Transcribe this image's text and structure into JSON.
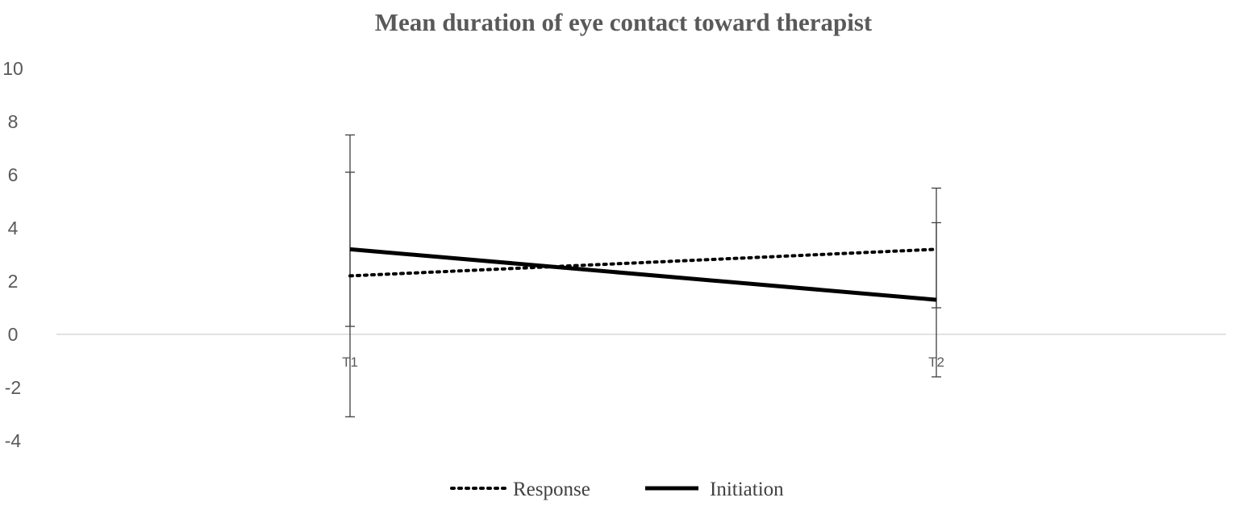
{
  "chart_data": {
    "type": "line",
    "title": "Mean duration of eye contact toward therapist",
    "xlabel": "",
    "ylabel": "",
    "categories": [
      "T1",
      "T2"
    ],
    "ylim": [
      -4,
      10
    ],
    "yticks": [
      10,
      8,
      6,
      4,
      2,
      0,
      -2,
      -4
    ],
    "grid": false,
    "legend_position": "bottom",
    "series": [
      {
        "name": "Response",
        "style": "dotted",
        "color": "#000000",
        "values": [
          2.2,
          3.2
        ],
        "error_low": [
          0.3,
          -1.6
        ],
        "error_high": [
          6.1,
          4.2
        ]
      },
      {
        "name": "Initiation",
        "style": "solid",
        "color": "#000000",
        "values": [
          3.2,
          1.3
        ],
        "error_low": [
          -3.1,
          1.0
        ],
        "error_high": [
          7.5,
          5.5
        ]
      }
    ]
  }
}
